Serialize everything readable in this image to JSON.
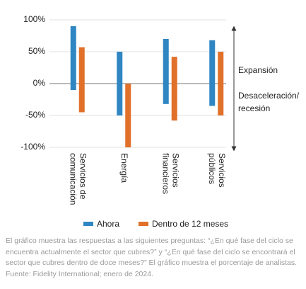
{
  "chart_data": {
    "type": "floating-bar",
    "categories": [
      [
        "Servicios de",
        "comunicación"
      ],
      [
        "Energía"
      ],
      [
        "Servicios",
        "financieros"
      ],
      [
        "Servicios",
        "públicos"
      ]
    ],
    "series": [
      {
        "name": "Ahora",
        "color": "#2f86c2",
        "values": [
          [
            -10,
            90
          ],
          [
            -50,
            50
          ],
          [
            -32,
            70
          ],
          [
            -35,
            68
          ]
        ]
      },
      {
        "name": "Dentro de 12 meses",
        "color": "#e0702a",
        "values": [
          [
            -45,
            57
          ],
          [
            -100,
            0
          ],
          [
            -58,
            42
          ],
          [
            -50,
            50
          ]
        ]
      }
    ],
    "ylim": [
      -100,
      100
    ],
    "yticks": [
      {
        "value": 100,
        "label": "100%"
      },
      {
        "value": 50,
        "label": "50%"
      },
      {
        "value": 0,
        "label": "0%"
      },
      {
        "value": -50,
        "label": "-50%"
      },
      {
        "value": -100,
        "label": "-100%"
      }
    ],
    "grid": true,
    "annotations": [
      [
        "Expansión"
      ],
      [
        "Desaceleración/",
        "recesión"
      ]
    ],
    "caption": "El gráfico muestra las respuestas a las siguientes preguntas: “¿En qué fase del ciclo se encuentra actualmente el sector que cubres?” y “¿En qué fase del ciclo se encontrará el sector que cubres dentro de doce meses?” El gráfico muestra el porcentaje de analistas. Fuente: Fidelity International; enero de 2024."
  }
}
